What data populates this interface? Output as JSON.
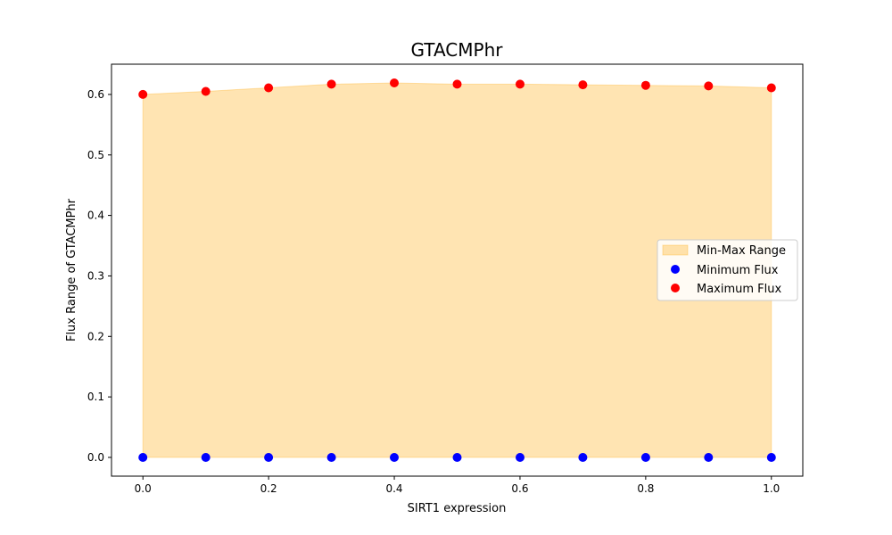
{
  "chart_data": {
    "type": "area",
    "title": "GTACMPhr",
    "xlabel": "SIRT1 expression",
    "ylabel": "Flux Range of GTACMPhr",
    "x": [
      0.0,
      0.1,
      0.2,
      0.3,
      0.4,
      0.5,
      0.6,
      0.7,
      0.8,
      0.9,
      1.0
    ],
    "series": [
      {
        "name": "Minimum Flux",
        "kind": "scatter",
        "color": "#0000ff",
        "values": [
          0,
          0,
          0,
          0,
          0,
          0,
          0,
          0,
          0,
          0,
          0
        ]
      },
      {
        "name": "Maximum Flux",
        "kind": "scatter",
        "color": "#ff0000",
        "values": [
          0.6,
          0.605,
          0.611,
          0.617,
          0.619,
          0.617,
          0.617,
          0.616,
          0.615,
          0.614,
          0.611
        ]
      }
    ],
    "fill": {
      "name": "Min-Max Range",
      "color": "#ffa500",
      "opacity": 0.3
    },
    "xlim": [
      -0.05,
      1.05
    ],
    "ylim": [
      -0.031,
      0.65
    ],
    "xticks": [
      "0.0",
      "0.2",
      "0.4",
      "0.6",
      "0.8",
      "1.0"
    ],
    "yticks": [
      "0.0",
      "0.1",
      "0.2",
      "0.3",
      "0.4",
      "0.5",
      "0.6"
    ],
    "legend": {
      "placement": "center-right",
      "entries": [
        "Min-Max Range",
        "Minimum Flux",
        "Maximum Flux"
      ]
    },
    "grid": false
  }
}
